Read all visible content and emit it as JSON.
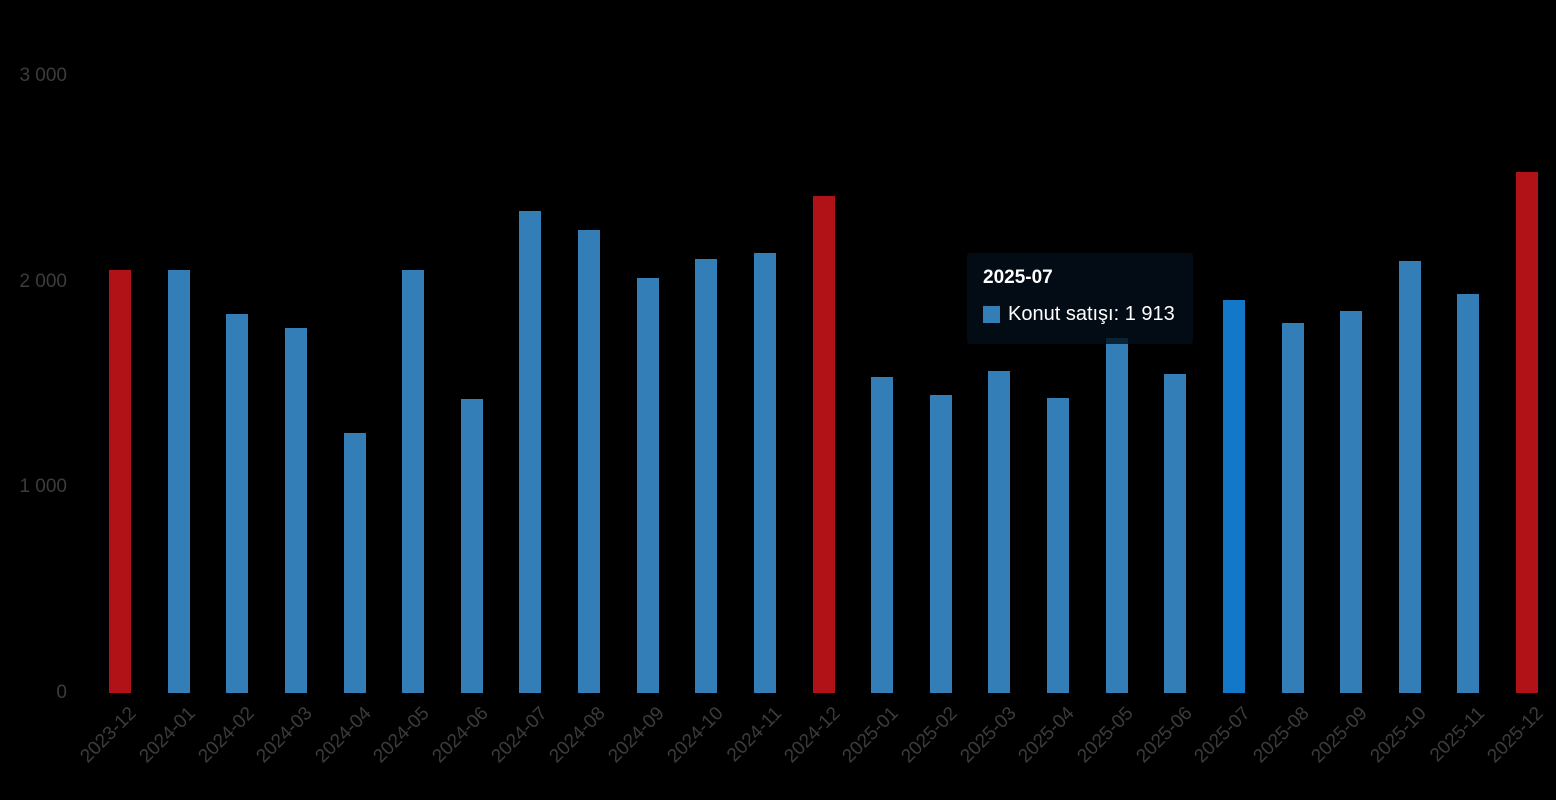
{
  "chart_data": {
    "type": "bar",
    "title": "",
    "xlabel": "",
    "ylabel": "",
    "categories": [
      "2023-12",
      "2024-01",
      "2024-02",
      "2024-03",
      "2024-04",
      "2024-05",
      "2024-06",
      "2024-07",
      "2024-08",
      "2024-09",
      "2024-10",
      "2024-11",
      "2024-12",
      "2025-01",
      "2025-02",
      "2025-03",
      "2025-04",
      "2025-05",
      "2025-06",
      "2025-07",
      "2025-08",
      "2025-09",
      "2025-10",
      "2025-11",
      "2025-12"
    ],
    "series": [
      {
        "name": "Konut satışı",
        "values": [
          2060,
          2058,
          1845,
          1778,
          1266,
          2060,
          1432,
          2343,
          2255,
          2017,
          2114,
          2143,
          2416,
          1539,
          1452,
          1569,
          1437,
          1725,
          1554,
          1913,
          1802,
          1861,
          2100,
          1939,
          2533
        ]
      }
    ],
    "ylim": [
      0,
      3000
    ],
    "yticks": [
      {
        "value": 0,
        "label": "0"
      },
      {
        "value": 1000,
        "label": "1 000"
      },
      {
        "value": 2000,
        "label": "2 000"
      },
      {
        "value": 3000,
        "label": "3 000"
      }
    ],
    "grid": false,
    "legend_position": "none",
    "background_color": "#000000",
    "axis_label_color": "#3c3c3c",
    "bar_color_default": "#347eb8",
    "bar_color_accent": "#b01218",
    "bar_color_highlight": "#1478c8",
    "accent_indices": [
      0,
      12,
      24
    ],
    "highlight_index": 19
  },
  "tooltip": {
    "title": "2025-07",
    "series_label": "Konut satışı",
    "value": "1 913",
    "text": "Konut satışı: 1 913",
    "marker_color": "#347eb8"
  }
}
